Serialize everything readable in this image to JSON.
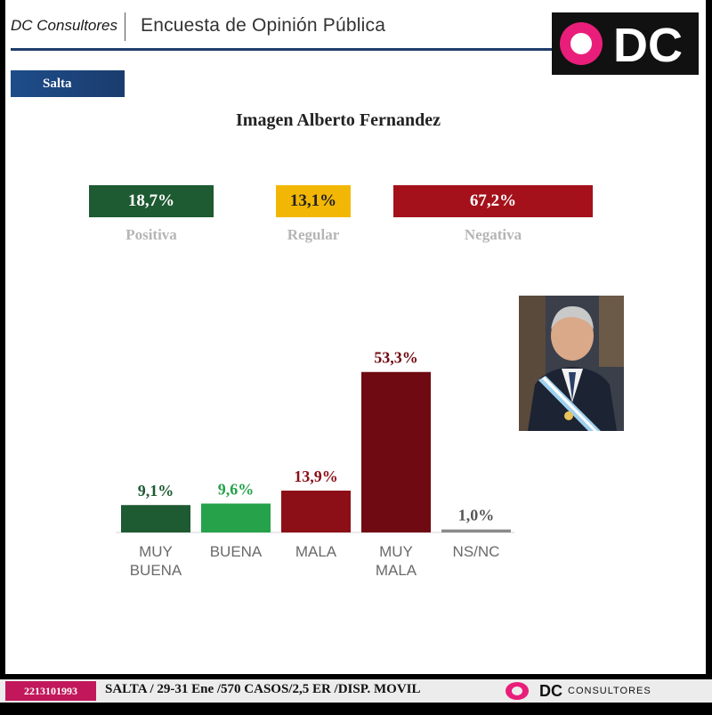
{
  "header": {
    "brand": "DC Consultores",
    "survey_title": "Encuesta de Opinión Pública",
    "logo_text": "DC"
  },
  "region": "Salta",
  "summary": [
    {
      "value": "18,7%",
      "label": "Positiva",
      "color": "#1e5a32"
    },
    {
      "value": "13,1%",
      "label": "Regular",
      "color": "#f2b705"
    },
    {
      "value": "67,2%",
      "label": "Negativa",
      "color": "#a4111a"
    }
  ],
  "chart_data": {
    "type": "bar",
    "title": "Imagen Alberto Fernandez",
    "categories": [
      "MUY BUENA",
      "BUENA",
      "MALA",
      "MUY MALA",
      "NS/NC"
    ],
    "category_lines": [
      [
        "MUY",
        "BUENA"
      ],
      [
        "BUENA"
      ],
      [
        "MALA"
      ],
      [
        "MUY",
        "MALA"
      ],
      [
        "NS/NC"
      ]
    ],
    "values": [
      9.1,
      9.6,
      13.9,
      53.3,
      1.0
    ],
    "value_labels": [
      "9,1%",
      "9,6%",
      "13,9%",
      "53,3%",
      "1,0%"
    ],
    "colors": [
      "#1e5a32",
      "#25a24a",
      "#8c0f17",
      "#700a12",
      "#8a8a8a"
    ],
    "label_colors": [
      "#1e5a32",
      "#25a24a",
      "#8c0f17",
      "#700a12",
      "#555555"
    ],
    "ylim": [
      0,
      55
    ],
    "grid": false,
    "xlabel": "",
    "ylabel": ""
  },
  "footer": {
    "phone": "2213101993",
    "details": "SALTA / 29-31 Ene /570 CASOS/2,5 ER  /DISP. MOVIL",
    "logo_dc": "DC",
    "logo_consultores": "CONSULTORES"
  }
}
